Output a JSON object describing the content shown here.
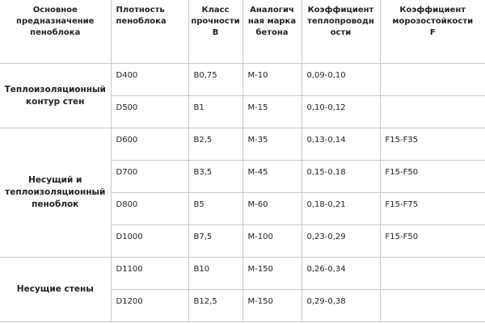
{
  "headers": [
    "Основное предназначение пеноблока",
    "Плотность пеноблока",
    "Класс прочности В",
    "Аналогичная марка бетона",
    "Коэффициент теплопроводности",
    "Коэффициент морозостойкости F"
  ],
  "header_lines": [
    [
      "Основное",
      "предназначение",
      "пеноблока"
    ],
    [
      "Плотность",
      "пеноблока"
    ],
    [
      "Класс",
      "прочности",
      "В"
    ],
    [
      "Аналогич",
      "ная марка",
      "бетона"
    ],
    [
      "Коэффициент",
      "теплопроводн",
      "ости"
    ],
    [
      "Коэффициент",
      "морозостойкости",
      "F"
    ]
  ],
  "groups": [
    {
      "label": "Теплоизоляционный контур стен",
      "rows": [
        {
          "density": "D400",
          "strength": "В0,75",
          "grade": "М-10",
          "conductivity": "0,09-0,10",
          "frost": ""
        },
        {
          "density": "D500",
          "strength": "В1",
          "grade": "М-15",
          "conductivity": "0,10-0,12",
          "frost": ""
        }
      ]
    },
    {
      "label": "Несущий и теплоизоляционный пеноблок",
      "rows": [
        {
          "density": "D600",
          "strength": "В2,5",
          "grade": "М-35",
          "conductivity": "0,13-0,14",
          "frost": "F15-F35"
        },
        {
          "density": "D700",
          "strength": "В3,5",
          "grade": "М-45",
          "conductivity": "0,15-0,18",
          "frost": "F15-F50"
        },
        {
          "density": "D800",
          "strength": "В5",
          "grade": "М-60",
          "conductivity": "0,18-0,21",
          "frost": "F15-F75"
        },
        {
          "density": "D1000",
          "strength": "В7,5",
          "grade": "М-100",
          "conductivity": "0,23-0,29",
          "frost": "F15-F50"
        }
      ]
    },
    {
      "label": "Несущие стены",
      "rows": [
        {
          "density": "D1100",
          "strength": "В10",
          "grade": "М-150",
          "conductivity": "0,26-0,34",
          "frost": ""
        },
        {
          "density": "D1200",
          "strength": "В12,5",
          "grade": "М-150",
          "conductivity": "0,29-0,38",
          "frost": ""
        }
      ]
    }
  ]
}
